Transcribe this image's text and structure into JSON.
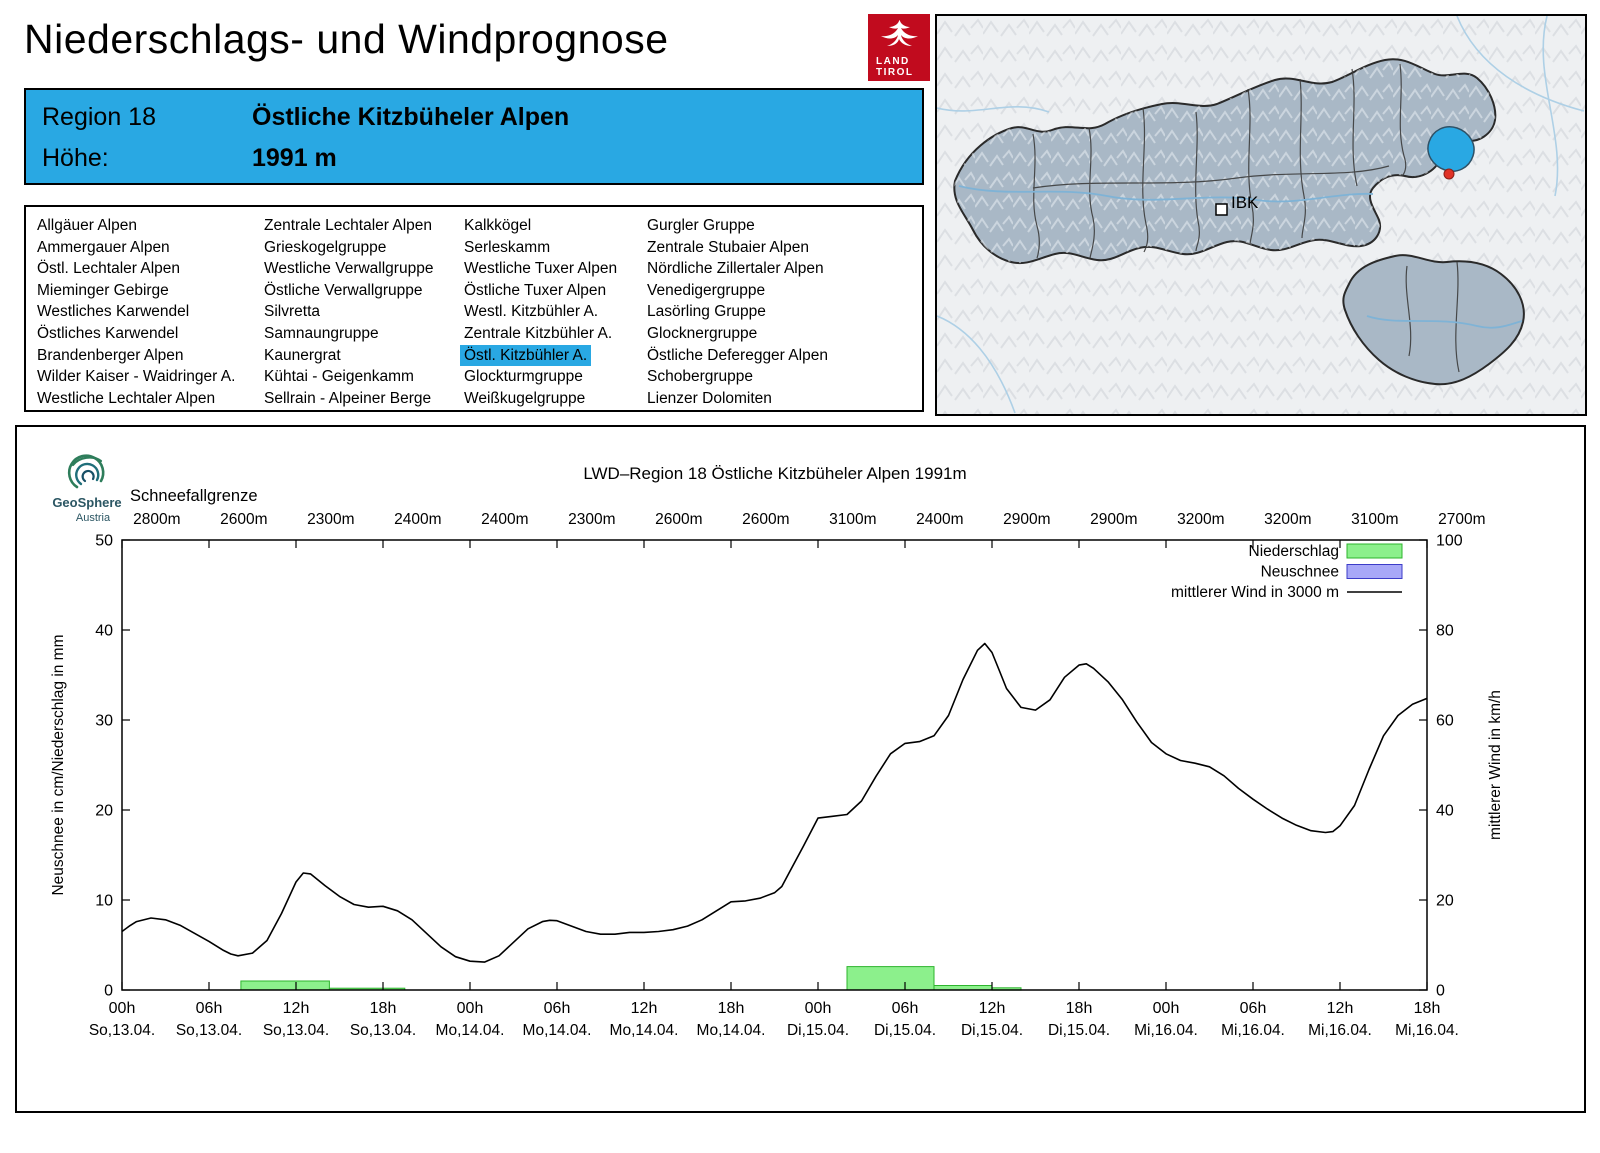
{
  "header": {
    "title": "Niederschlags- und Windprognose",
    "logo_line1": "LAND",
    "logo_line2": "TIROL"
  },
  "region_box": {
    "region_label": "Region 18",
    "region_name": "Östliche Kitzbüheler Alpen",
    "altitude_label": "Höhe:",
    "altitude_value": "1991 m"
  },
  "region_list": {
    "selected": "Östl. Kitzbühler A.",
    "columns": [
      [
        "Allgäuer Alpen",
        "Ammergauer Alpen",
        "Östl. Lechtaler Alpen",
        "Mieminger Gebirge",
        "Westliches Karwendel",
        "Östliches Karwendel",
        "Brandenberger Alpen",
        "Wilder Kaiser - Waidringer A.",
        "Westliche Lechtaler Alpen"
      ],
      [
        "Zentrale Lechtaler Alpen",
        "Grieskogelgruppe",
        "Westliche Verwallgruppe",
        "Östliche Verwallgruppe",
        "Silvretta",
        "Samnaungruppe",
        "Kaunergrat",
        "Kühtai - Geigenkamm",
        "Sellrain - Alpeiner Berge"
      ],
      [
        "Kalkkögel",
        "Serleskamm",
        "Westliche Tuxer Alpen",
        "Östliche Tuxer Alpen",
        "Westl. Kitzbühler A.",
        "Zentrale Kitzbühler A.",
        "Östl. Kitzbühler A.",
        "Glockturmgruppe",
        "Weißkugelgruppe"
      ],
      [
        "Gurgler Gruppe",
        "Zentrale Stubaier Alpen",
        "Nördliche Zillertaler Alpen",
        "Venedigergruppe",
        "Lasörling Gruppe",
        "Glocknergruppe",
        "Östliche Deferegger Alpen",
        "Schobergruppe",
        "Lienzer Dolomiten"
      ]
    ]
  },
  "map": {
    "city_label": "IBK",
    "highlight_color": "#29a8e3",
    "marker_color": "#e03227"
  },
  "chart_branding": {
    "line1": "GeoSphere",
    "line2": "Austria"
  },
  "chart_data": {
    "type": "line",
    "title": "LWD–Region 18 Östliche Kitzbüheler Alpen 1991m",
    "snowline_label": "Schneefallgrenze",
    "snowline_values": [
      "2800m",
      "2600m",
      "2300m",
      "2400m",
      "2400m",
      "2300m",
      "2600m",
      "2600m",
      "3100m",
      "2400m",
      "2900m",
      "2900m",
      "3200m",
      "3200m",
      "3100m",
      "2700m"
    ],
    "ylabel_left": "Neuschnee in cm/Niederschlag in mm",
    "ylabel_right": "mittlerer Wind in km/h",
    "ylim_left": [
      0,
      50
    ],
    "ylim_right": [
      0,
      100
    ],
    "yticks_left": [
      0,
      10,
      20,
      30,
      40,
      50
    ],
    "yticks_right": [
      0,
      20,
      40,
      60,
      80,
      100
    ],
    "x_hours_total": 90,
    "x_ticks": [
      {
        "hour": 0,
        "time": "00h",
        "date": "So,13.04."
      },
      {
        "hour": 6,
        "time": "06h",
        "date": "So,13.04."
      },
      {
        "hour": 12,
        "time": "12h",
        "date": "So,13.04."
      },
      {
        "hour": 18,
        "time": "18h",
        "date": "So,13.04."
      },
      {
        "hour": 24,
        "time": "00h",
        "date": "Mo,14.04."
      },
      {
        "hour": 30,
        "time": "06h",
        "date": "Mo,14.04."
      },
      {
        "hour": 36,
        "time": "12h",
        "date": "Mo,14.04."
      },
      {
        "hour": 42,
        "time": "18h",
        "date": "Mo,14.04."
      },
      {
        "hour": 48,
        "time": "00h",
        "date": "Di,15.04."
      },
      {
        "hour": 54,
        "time": "06h",
        "date": "Di,15.04."
      },
      {
        "hour": 60,
        "time": "12h",
        "date": "Di,15.04."
      },
      {
        "hour": 66,
        "time": "18h",
        "date": "Di,15.04."
      },
      {
        "hour": 72,
        "time": "00h",
        "date": "Mi,16.04."
      },
      {
        "hour": 78,
        "time": "06h",
        "date": "Mi,16.04."
      },
      {
        "hour": 84,
        "time": "12h",
        "date": "Mi,16.04."
      },
      {
        "hour": 90,
        "time": "18h",
        "date": "Mi,16.04."
      }
    ],
    "legend": [
      {
        "label": "Niederschlag",
        "type": "box",
        "fill": "#8cf08c",
        "stroke": "#2db42d"
      },
      {
        "label": "Neuschnee",
        "type": "box",
        "fill": "#a8a8f8",
        "stroke": "#3c3cc8"
      },
      {
        "label": "mittlerer Wind in 3000 m",
        "type": "line",
        "stroke": "#000000"
      }
    ],
    "colors": {
      "precip_fill": "#8cf08c",
      "precip_stroke": "#2db42d",
      "wind": "#000000"
    },
    "precip_mm_segments": [
      {
        "from": 8.2,
        "to": 14.3,
        "value": 1.0
      },
      {
        "from": 14.3,
        "to": 19.5,
        "value": 0.2
      },
      {
        "from": 50,
        "to": 56,
        "value": 2.6
      },
      {
        "from": 56,
        "to": 60,
        "value": 0.5
      },
      {
        "from": 60,
        "to": 62,
        "value": 0.25
      }
    ],
    "neuschnee_cm_segments": [],
    "wind_kmh": [
      [
        0,
        13
      ],
      [
        0.5,
        14.2
      ],
      [
        1,
        15.2
      ],
      [
        2,
        16
      ],
      [
        3,
        15.6
      ],
      [
        4,
        14.4
      ],
      [
        5,
        12.6
      ],
      [
        6,
        10.8
      ],
      [
        7,
        8.8
      ],
      [
        7.5,
        8
      ],
      [
        8,
        7.6
      ],
      [
        9,
        8.2
      ],
      [
        10,
        11
      ],
      [
        11,
        17
      ],
      [
        12,
        24
      ],
      [
        12.5,
        26
      ],
      [
        13,
        25.8
      ],
      [
        14,
        23.2
      ],
      [
        15,
        20.8
      ],
      [
        16,
        19
      ],
      [
        17,
        18.4
      ],
      [
        18,
        18.6
      ],
      [
        19,
        17.6
      ],
      [
        20,
        15.6
      ],
      [
        21,
        12.6
      ],
      [
        22,
        9.6
      ],
      [
        23,
        7.4
      ],
      [
        24,
        6.4
      ],
      [
        25,
        6.2
      ],
      [
        26,
        7.6
      ],
      [
        27,
        10.6
      ],
      [
        28,
        13.6
      ],
      [
        29,
        15.2
      ],
      [
        29.5,
        15.5
      ],
      [
        30,
        15.4
      ],
      [
        31,
        14.2
      ],
      [
        32,
        13
      ],
      [
        33,
        12.4
      ],
      [
        34,
        12.4
      ],
      [
        35,
        12.8
      ],
      [
        36,
        12.8
      ],
      [
        37,
        13
      ],
      [
        38,
        13.4
      ],
      [
        39,
        14.2
      ],
      [
        40,
        15.6
      ],
      [
        41,
        17.6
      ],
      [
        42,
        19.6
      ],
      [
        43,
        19.8
      ],
      [
        44,
        20.4
      ],
      [
        45,
        21.6
      ],
      [
        45.5,
        23
      ],
      [
        46,
        26
      ],
      [
        47,
        32
      ],
      [
        48,
        38.2
      ],
      [
        49,
        38.6
      ],
      [
        50,
        39
      ],
      [
        51,
        42
      ],
      [
        52,
        47.5
      ],
      [
        53,
        52.5
      ],
      [
        54,
        54.8
      ],
      [
        55,
        55.2
      ],
      [
        56,
        56.5
      ],
      [
        57,
        61
      ],
      [
        58,
        69
      ],
      [
        59,
        75.5
      ],
      [
        59.5,
        77
      ],
      [
        60,
        75
      ],
      [
        60.5,
        71
      ],
      [
        61,
        67
      ],
      [
        62,
        62.8
      ],
      [
        63,
        62.2
      ],
      [
        64,
        64.5
      ],
      [
        65,
        69.5
      ],
      [
        66,
        72.2
      ],
      [
        66.5,
        72.5
      ],
      [
        67,
        71.5
      ],
      [
        68,
        68.5
      ],
      [
        69,
        64.5
      ],
      [
        70,
        59.5
      ],
      [
        71,
        55
      ],
      [
        72,
        52.5
      ],
      [
        73,
        51
      ],
      [
        74,
        50.4
      ],
      [
        75,
        49.6
      ],
      [
        76,
        47.6
      ],
      [
        77,
        44.8
      ],
      [
        78,
        42.4
      ],
      [
        79,
        40.2
      ],
      [
        80,
        38.2
      ],
      [
        81,
        36.6
      ],
      [
        82,
        35.4
      ],
      [
        83,
        35
      ],
      [
        83.5,
        35.2
      ],
      [
        84,
        36.5
      ],
      [
        85,
        41
      ],
      [
        86,
        49
      ],
      [
        87,
        56.5
      ],
      [
        88,
        61
      ],
      [
        89,
        63.5
      ],
      [
        90,
        64.8
      ]
    ]
  }
}
